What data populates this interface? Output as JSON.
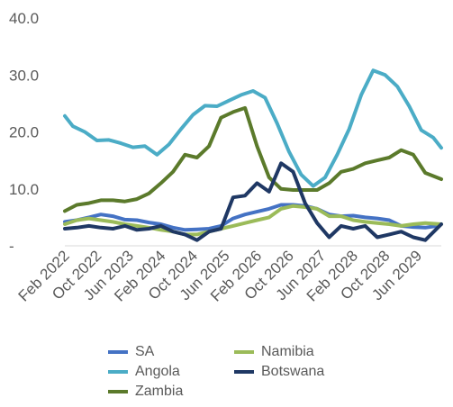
{
  "chart_data": {
    "type": "line",
    "title": "",
    "xlabel": "",
    "ylabel": "",
    "ylim": [
      0,
      40
    ],
    "yticks": [
      {
        "value": 0,
        "label": "-"
      },
      {
        "value": 10,
        "label": "10.0"
      },
      {
        "value": 20,
        "label": "20.0"
      },
      {
        "value": 30,
        "label": "30.0"
      },
      {
        "value": 40,
        "label": "40.0"
      }
    ],
    "xticks": [
      "Feb 2022",
      "Oct 2022",
      "Jun 2023",
      "Feb 2024",
      "Oct 2024",
      "Jun 2025",
      "Feb 2026",
      "Oct 2026",
      "Jun 2027",
      "Feb 2028",
      "Oct 2028",
      "Jun 2029"
    ],
    "x_start": "2022-02",
    "x_end": "2029-12",
    "grid": false,
    "legend_position": "bottom",
    "series": [
      {
        "name": "SA",
        "color": "#4472c4",
        "points": [
          [
            "2022-02",
            4.2
          ],
          [
            "2022-05",
            4.5
          ],
          [
            "2022-08",
            5.0
          ],
          [
            "2022-11",
            5.5
          ],
          [
            "2023-02",
            5.2
          ],
          [
            "2023-05",
            4.6
          ],
          [
            "2023-08",
            4.5
          ],
          [
            "2023-11",
            4.1
          ],
          [
            "2024-02",
            3.8
          ],
          [
            "2024-05",
            3.2
          ],
          [
            "2024-08",
            2.8
          ],
          [
            "2024-11",
            2.9
          ],
          [
            "2025-02",
            3.0
          ],
          [
            "2025-05",
            3.5
          ],
          [
            "2025-08",
            4.8
          ],
          [
            "2025-11",
            5.5
          ],
          [
            "2026-02",
            6.0
          ],
          [
            "2026-05",
            6.5
          ],
          [
            "2026-08",
            7.2
          ],
          [
            "2026-11",
            7.2
          ],
          [
            "2027-02",
            7.0
          ],
          [
            "2027-05",
            6.5
          ],
          [
            "2027-08",
            5.5
          ],
          [
            "2027-11",
            5.2
          ],
          [
            "2028-02",
            5.3
          ],
          [
            "2028-05",
            5.0
          ],
          [
            "2028-08",
            4.8
          ],
          [
            "2028-11",
            4.5
          ],
          [
            "2029-02",
            3.5
          ],
          [
            "2029-05",
            3.3
          ],
          [
            "2029-08",
            3.2
          ],
          [
            "2029-11",
            3.5
          ]
        ]
      },
      {
        "name": "Angola",
        "color": "#4bacc6",
        "points": [
          [
            "2022-02",
            22.8
          ],
          [
            "2022-04",
            21.0
          ],
          [
            "2022-07",
            20.0
          ],
          [
            "2022-10",
            18.5
          ],
          [
            "2023-01",
            18.6
          ],
          [
            "2023-04",
            18.0
          ],
          [
            "2023-07",
            17.3
          ],
          [
            "2023-10",
            17.5
          ],
          [
            "2024-01",
            16.0
          ],
          [
            "2024-04",
            17.8
          ],
          [
            "2024-07",
            20.5
          ],
          [
            "2024-10",
            23.0
          ],
          [
            "2025-01",
            24.6
          ],
          [
            "2025-04",
            24.5
          ],
          [
            "2025-07",
            25.5
          ],
          [
            "2025-10",
            26.5
          ],
          [
            "2026-01",
            27.2
          ],
          [
            "2026-04",
            26.0
          ],
          [
            "2026-07",
            21.5
          ],
          [
            "2026-10",
            16.5
          ],
          [
            "2027-01",
            12.5
          ],
          [
            "2027-04",
            10.5
          ],
          [
            "2027-07",
            12.0
          ],
          [
            "2027-10",
            16.0
          ],
          [
            "2028-01",
            20.5
          ],
          [
            "2028-04",
            26.5
          ],
          [
            "2028-07",
            30.8
          ],
          [
            "2028-10",
            30.0
          ],
          [
            "2029-01",
            28.0
          ],
          [
            "2029-04",
            24.5
          ],
          [
            "2029-07",
            20.3
          ],
          [
            "2029-10",
            19.0
          ],
          [
            "2029-12",
            17.2
          ]
        ]
      },
      {
        "name": "Zambia",
        "color": "#5b7a2b",
        "points": [
          [
            "2022-02",
            6.1
          ],
          [
            "2022-05",
            7.2
          ],
          [
            "2022-08",
            7.5
          ],
          [
            "2022-11",
            8.0
          ],
          [
            "2023-02",
            8.0
          ],
          [
            "2023-05",
            7.8
          ],
          [
            "2023-08",
            8.2
          ],
          [
            "2023-11",
            9.2
          ],
          [
            "2024-02",
            11.0
          ],
          [
            "2024-05",
            13.0
          ],
          [
            "2024-08",
            16.0
          ],
          [
            "2024-11",
            15.5
          ],
          [
            "2025-02",
            17.5
          ],
          [
            "2025-05",
            22.5
          ],
          [
            "2025-08",
            23.5
          ],
          [
            "2025-11",
            24.2
          ],
          [
            "2026-02",
            17.5
          ],
          [
            "2026-05",
            12.0
          ],
          [
            "2026-08",
            10.0
          ],
          [
            "2026-11",
            9.8
          ],
          [
            "2027-02",
            9.8
          ],
          [
            "2027-05",
            9.8
          ],
          [
            "2027-08",
            11.0
          ],
          [
            "2027-11",
            13.0
          ],
          [
            "2028-02",
            13.5
          ],
          [
            "2028-05",
            14.5
          ],
          [
            "2028-08",
            15.0
          ],
          [
            "2028-11",
            15.5
          ],
          [
            "2029-02",
            16.8
          ],
          [
            "2029-05",
            16.0
          ],
          [
            "2029-08",
            12.8
          ],
          [
            "2029-12",
            11.7
          ]
        ]
      },
      {
        "name": "Namibia",
        "color": "#9bbb59",
        "points": [
          [
            "2022-02",
            3.8
          ],
          [
            "2022-05",
            4.5
          ],
          [
            "2022-08",
            4.8
          ],
          [
            "2022-11",
            4.5
          ],
          [
            "2023-02",
            4.2
          ],
          [
            "2023-05",
            3.8
          ],
          [
            "2023-08",
            3.5
          ],
          [
            "2023-11",
            3.2
          ],
          [
            "2024-02",
            2.8
          ],
          [
            "2024-05",
            2.5
          ],
          [
            "2024-08",
            2.0
          ],
          [
            "2024-11",
            2.0
          ],
          [
            "2025-02",
            2.5
          ],
          [
            "2025-05",
            3.0
          ],
          [
            "2025-08",
            3.5
          ],
          [
            "2025-11",
            4.0
          ],
          [
            "2026-02",
            4.5
          ],
          [
            "2026-05",
            5.0
          ],
          [
            "2026-08",
            6.5
          ],
          [
            "2026-11",
            7.0
          ],
          [
            "2027-02",
            6.8
          ],
          [
            "2027-05",
            6.5
          ],
          [
            "2027-08",
            5.2
          ],
          [
            "2027-11",
            5.2
          ],
          [
            "2028-02",
            4.5
          ],
          [
            "2028-05",
            4.2
          ],
          [
            "2028-08",
            4.0
          ],
          [
            "2028-11",
            3.8
          ],
          [
            "2029-02",
            3.5
          ],
          [
            "2029-05",
            3.8
          ],
          [
            "2029-08",
            4.0
          ],
          [
            "2029-12",
            3.8
          ]
        ]
      },
      {
        "name": "Botswana",
        "color": "#1f3864",
        "points": [
          [
            "2022-02",
            3.0
          ],
          [
            "2022-05",
            3.2
          ],
          [
            "2022-08",
            3.5
          ],
          [
            "2022-11",
            3.2
          ],
          [
            "2023-02",
            3.0
          ],
          [
            "2023-05",
            3.5
          ],
          [
            "2023-08",
            2.8
          ],
          [
            "2023-11",
            3.0
          ],
          [
            "2024-02",
            3.5
          ],
          [
            "2024-05",
            2.5
          ],
          [
            "2024-08",
            2.0
          ],
          [
            "2024-11",
            1.0
          ],
          [
            "2025-02",
            2.5
          ],
          [
            "2025-05",
            3.0
          ],
          [
            "2025-08",
            8.5
          ],
          [
            "2025-11",
            8.8
          ],
          [
            "2026-02",
            11.0
          ],
          [
            "2026-05",
            9.5
          ],
          [
            "2026-08",
            14.5
          ],
          [
            "2026-11",
            13.0
          ],
          [
            "2027-02",
            7.5
          ],
          [
            "2027-05",
            4.0
          ],
          [
            "2027-08",
            1.5
          ],
          [
            "2027-11",
            3.5
          ],
          [
            "2028-02",
            3.0
          ],
          [
            "2028-05",
            3.5
          ],
          [
            "2028-08",
            1.5
          ],
          [
            "2028-11",
            2.0
          ],
          [
            "2029-02",
            2.5
          ],
          [
            "2029-05",
            1.5
          ],
          [
            "2029-08",
            1.0
          ],
          [
            "2029-12",
            3.8
          ]
        ]
      }
    ],
    "legend": [
      {
        "name": "SA",
        "color": "#4472c4"
      },
      {
        "name": "Namibia",
        "color": "#9bbb59"
      },
      {
        "name": "Angola",
        "color": "#4bacc6"
      },
      {
        "name": "Botswana",
        "color": "#1f3864"
      },
      {
        "name": "Zambia",
        "color": "#5b7a2b"
      }
    ]
  }
}
